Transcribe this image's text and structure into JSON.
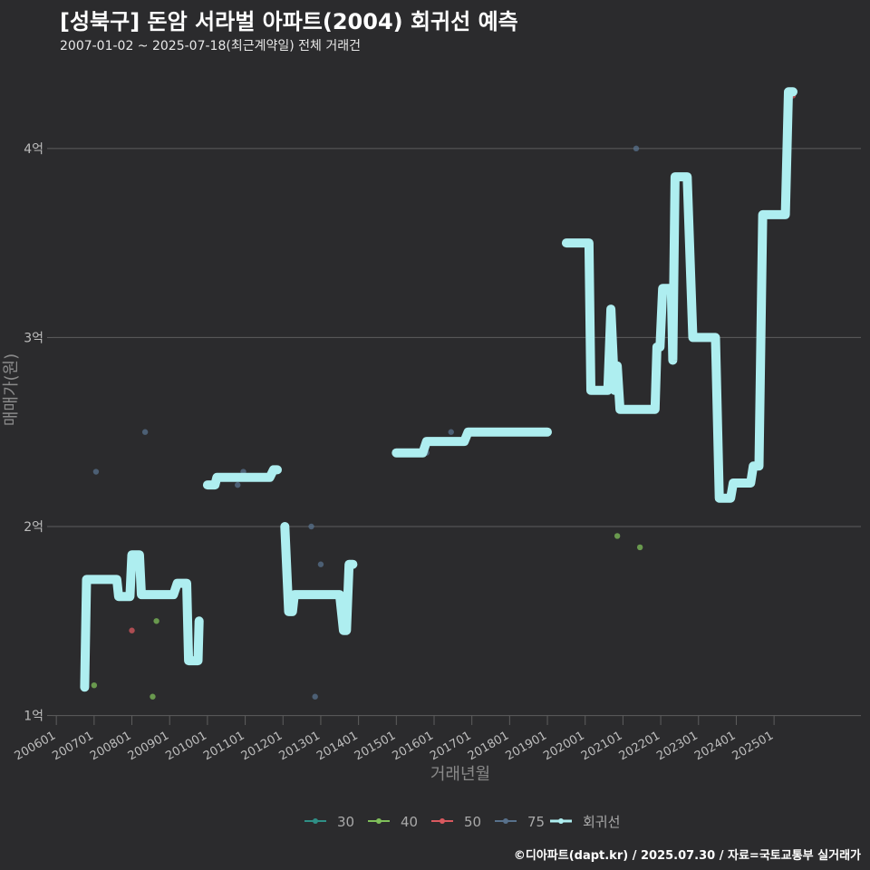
{
  "header": {
    "title": "[성북구] 돈암 서라벌 아파트(2004) 회귀선 예측",
    "subtitle": "2007-01-02 ~ 2025-07-18(최근계약일) 전체 거래건",
    "caption": "©디아파트(dapt.kr) / 2025.07.30 / 자료=국토교통부 실거래가"
  },
  "colors": {
    "background": "#2b2b2d",
    "grid": "#5e5e5e",
    "regression": "#aeeef0",
    "s30": "#2f8f86",
    "s40": "#7fbf5a",
    "s50": "#d9595f",
    "s75": "#58718c"
  },
  "chart_data": {
    "type": "scatter",
    "title": "[성북구] 돈암 서라벌 아파트(2004) 회귀선 예측",
    "xlabel": "거래년월",
    "ylabel": "매매가(원)",
    "x_range": [
      2005.9,
      2027.3
    ],
    "ylim": [
      0.95,
      4.45
    ],
    "y_ticks": [
      {
        "value": 1,
        "label": "1억"
      },
      {
        "value": 2,
        "label": "2억"
      },
      {
        "value": 3,
        "label": "3억"
      },
      {
        "value": 4,
        "label": "4억"
      }
    ],
    "x_ticks": [
      {
        "value": 2006,
        "label": "200601"
      },
      {
        "value": 2007,
        "label": "200701"
      },
      {
        "value": 2008,
        "label": "200801"
      },
      {
        "value": 2009,
        "label": "200901"
      },
      {
        "value": 2010,
        "label": "201001"
      },
      {
        "value": 2011,
        "label": "201101"
      },
      {
        "value": 2012,
        "label": "201201"
      },
      {
        "value": 2013,
        "label": "201301"
      },
      {
        "value": 2014,
        "label": "201401"
      },
      {
        "value": 2015,
        "label": "201501"
      },
      {
        "value": 2016,
        "label": "201601"
      },
      {
        "value": 2017,
        "label": "201701"
      },
      {
        "value": 2018,
        "label": "201801"
      },
      {
        "value": 2019,
        "label": "201901"
      },
      {
        "value": 2020,
        "label": "202001"
      },
      {
        "value": 2021,
        "label": "202101"
      },
      {
        "value": 2022,
        "label": "202201"
      },
      {
        "value": 2023,
        "label": "202301"
      },
      {
        "value": 2024,
        "label": "202401"
      },
      {
        "value": 2025,
        "label": "202501"
      }
    ],
    "legend": {
      "position": "bottom",
      "items": [
        {
          "key": "s30",
          "label": "30"
        },
        {
          "key": "s40",
          "label": "40"
        },
        {
          "key": "s50",
          "label": "50"
        },
        {
          "key": "s75",
          "label": "75"
        },
        {
          "key": "regression",
          "label": "회귀선"
        }
      ]
    },
    "series": [
      {
        "name": "40",
        "color_key": "s40",
        "points": [
          [
            2007.0,
            1.16
          ],
          [
            2008.55,
            1.1
          ],
          [
            2008.65,
            1.5
          ],
          [
            2020.85,
            1.95
          ],
          [
            2021.45,
            1.89
          ]
        ]
      },
      {
        "name": "50",
        "color_key": "s50",
        "points": [
          [
            2008.0,
            1.45
          ],
          [
            2025.5,
            4.28
          ]
        ]
      },
      {
        "name": "75",
        "color_key": "s75",
        "points": [
          [
            2007.05,
            2.29
          ],
          [
            2008.35,
            2.5
          ],
          [
            2010.8,
            2.22
          ],
          [
            2010.95,
            2.29
          ],
          [
            2012.75,
            2.0
          ],
          [
            2012.85,
            1.1
          ],
          [
            2013.0,
            1.8
          ],
          [
            2015.8,
            2.39
          ],
          [
            2016.45,
            2.5
          ],
          [
            2021.35,
            4.0
          ]
        ]
      }
    ],
    "regression_segments": [
      [
        [
          2006.75,
          1.15
        ],
        [
          2006.8,
          1.72
        ],
        [
          2007.6,
          1.72
        ],
        [
          2007.65,
          1.63
        ],
        [
          2007.95,
          1.63
        ],
        [
          2008.0,
          1.85
        ],
        [
          2008.2,
          1.85
        ],
        [
          2008.25,
          1.64
        ],
        [
          2009.1,
          1.64
        ],
        [
          2009.2,
          1.7
        ],
        [
          2009.45,
          1.7
        ],
        [
          2009.5,
          1.29
        ],
        [
          2009.75,
          1.29
        ],
        [
          2009.78,
          1.5
        ]
      ],
      [
        [
          2010.0,
          2.22
        ],
        [
          2010.2,
          2.22
        ],
        [
          2010.25,
          2.26
        ],
        [
          2011.65,
          2.26
        ],
        [
          2011.75,
          2.3
        ],
        [
          2011.85,
          2.3
        ]
      ],
      [
        [
          2012.05,
          2.0
        ],
        [
          2012.15,
          1.55
        ],
        [
          2012.25,
          1.55
        ],
        [
          2012.3,
          1.64
        ],
        [
          2013.5,
          1.64
        ],
        [
          2013.6,
          1.45
        ],
        [
          2013.68,
          1.45
        ],
        [
          2013.75,
          1.8
        ],
        [
          2013.85,
          1.8
        ]
      ],
      [
        [
          2015.0,
          2.39
        ],
        [
          2015.7,
          2.39
        ],
        [
          2015.8,
          2.45
        ],
        [
          2016.8,
          2.45
        ],
        [
          2016.9,
          2.5
        ],
        [
          2019.0,
          2.5
        ]
      ],
      [
        [
          2019.5,
          3.5
        ],
        [
          2020.1,
          3.5
        ],
        [
          2020.15,
          2.72
        ],
        [
          2020.6,
          2.72
        ],
        [
          2020.68,
          3.15
        ],
        [
          2020.78,
          2.72
        ],
        [
          2020.85,
          2.85
        ],
        [
          2020.92,
          2.62
        ],
        [
          2021.85,
          2.62
        ],
        [
          2021.9,
          2.95
        ],
        [
          2021.98,
          2.95
        ],
        [
          2022.05,
          3.26
        ],
        [
          2022.28,
          3.26
        ],
        [
          2022.32,
          2.88
        ],
        [
          2022.38,
          3.85
        ],
        [
          2022.7,
          3.85
        ],
        [
          2022.85,
          3.0
        ],
        [
          2023.45,
          3.0
        ],
        [
          2023.55,
          2.15
        ],
        [
          2023.85,
          2.15
        ],
        [
          2023.92,
          2.23
        ],
        [
          2024.38,
          2.23
        ],
        [
          2024.45,
          2.32
        ],
        [
          2024.6,
          2.32
        ],
        [
          2024.7,
          3.65
        ],
        [
          2025.3,
          3.65
        ],
        [
          2025.38,
          4.3
        ],
        [
          2025.5,
          4.3
        ]
      ]
    ]
  }
}
